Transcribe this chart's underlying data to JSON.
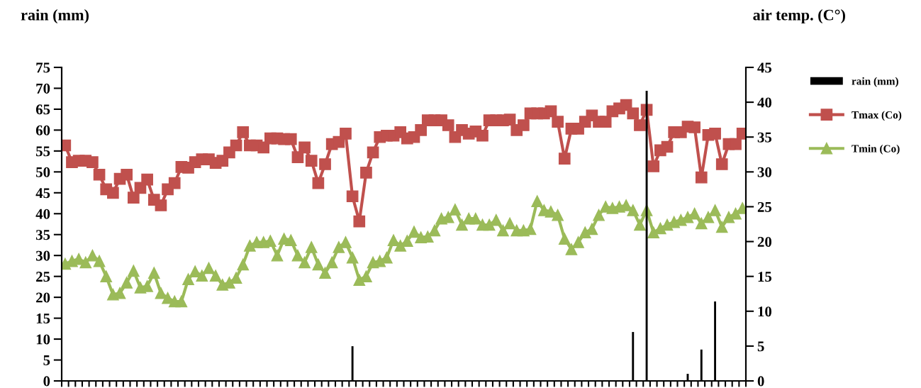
{
  "chart_data": {
    "type": "line",
    "categories": [
      null,
      null,
      null,
      null,
      null,
      null,
      null,
      null,
      null,
      null,
      null,
      null,
      null,
      null,
      null,
      null,
      null,
      null,
      null,
      null,
      null,
      null,
      null,
      null,
      null,
      null,
      null,
      null,
      null,
      null,
      null,
      null,
      null,
      null,
      null,
      null,
      null,
      null,
      null,
      null,
      null,
      null,
      null,
      null,
      null,
      null,
      null,
      null,
      null,
      null,
      null,
      null,
      null,
      null,
      null,
      null,
      null,
      null,
      null,
      null,
      null,
      null,
      null,
      null,
      null,
      null,
      null,
      null,
      null,
      null,
      null,
      null,
      null,
      null,
      null,
      null,
      null,
      null,
      null,
      null,
      null,
      null,
      null,
      null,
      null,
      null,
      null,
      null,
      null,
      null,
      null,
      null,
      null,
      null,
      null,
      null,
      null,
      null,
      null,
      null
    ],
    "ylabel": "rain (mm)",
    "y2label": "air temp. (C°)",
    "ylim": [
      0,
      75
    ],
    "yticks": [
      0,
      5,
      10,
      15,
      20,
      25,
      30,
      35,
      40,
      45,
      50,
      55,
      60,
      65,
      70,
      75
    ],
    "y2lim": [
      0,
      45
    ],
    "y2ticks": [
      0,
      5,
      10,
      15,
      20,
      25,
      30,
      35,
      40,
      45
    ],
    "legend": "right",
    "grid": false,
    "series": [
      {
        "name": "rain (mm)",
        "type": "bar",
        "color": "#000000",
        "values": [
          0,
          0,
          0,
          0,
          0,
          0,
          0,
          0,
          0,
          0,
          0,
          0,
          0,
          0,
          0,
          0,
          0,
          0,
          0,
          0,
          0,
          0,
          0,
          0,
          0,
          0,
          0,
          0,
          0,
          0,
          0,
          0,
          0,
          0,
          0,
          0,
          0,
          0,
          0,
          0,
          0,
          0,
          8.3,
          0,
          0,
          0,
          0,
          0,
          0,
          0,
          0,
          0,
          0,
          0,
          0,
          0,
          0,
          0,
          0,
          0,
          0,
          0,
          0,
          0,
          0,
          0,
          0,
          0,
          0,
          0,
          0,
          0,
          0,
          0,
          0,
          0,
          0,
          0,
          0,
          0,
          0,
          0,
          0,
          11.7,
          0,
          69.4,
          0,
          0,
          0,
          0,
          0,
          1.7,
          0,
          7.5,
          0,
          19.0,
          0,
          0,
          0,
          0
        ]
      },
      {
        "name": "Tmax (Co)",
        "axis": "y2",
        "marker": "square",
        "color": "#c0504d",
        "values": [
          33.8,
          31.4,
          31.6,
          31.6,
          31.4,
          29.6,
          27.5,
          27.0,
          29.0,
          29.6,
          26.3,
          27.7,
          28.9,
          26.0,
          25.2,
          27.5,
          28.4,
          30.7,
          30.6,
          31.4,
          31.8,
          31.8,
          31.3,
          31.6,
          32.8,
          33.8,
          35.7,
          33.8,
          33.8,
          33.5,
          34.8,
          34.8,
          34.7,
          34.7,
          32.1,
          33.5,
          31.6,
          28.4,
          31.1,
          34.0,
          34.3,
          35.5,
          26.5,
          22.9,
          29.9,
          32.8,
          35.0,
          35.2,
          35.2,
          35.7,
          34.8,
          35.0,
          36.0,
          37.4,
          37.4,
          37.4,
          36.7,
          35.0,
          36.0,
          35.5,
          35.8,
          35.2,
          37.4,
          37.4,
          37.4,
          37.5,
          36.0,
          36.7,
          38.4,
          38.4,
          38.4,
          38.7,
          37.2,
          31.9,
          36.2,
          36.2,
          37.2,
          38.1,
          37.2,
          37.2,
          38.7,
          39.1,
          39.6,
          38.4,
          36.7,
          38.9,
          30.8,
          33.1,
          33.6,
          35.7,
          35.7,
          36.5,
          36.4,
          29.2,
          35.3,
          35.5,
          31.1,
          34.0,
          34.0,
          35.5
        ]
      },
      {
        "name": "Tmin (Co)",
        "axis": "y2",
        "marker": "triangle",
        "color": "#9bbb59",
        "values": [
          16.8,
          17.2,
          17.5,
          17.0,
          18.0,
          17.2,
          15.0,
          12.4,
          12.6,
          14.1,
          15.8,
          13.4,
          13.6,
          15.5,
          12.6,
          11.9,
          11.4,
          11.4,
          14.6,
          15.7,
          15.1,
          16.2,
          15.1,
          13.8,
          14.1,
          14.8,
          16.7,
          19.4,
          19.9,
          19.9,
          20.1,
          18.0,
          20.4,
          20.2,
          18.0,
          17.0,
          19.2,
          16.7,
          15.5,
          17.0,
          19.2,
          19.9,
          17.7,
          14.5,
          15.0,
          17.0,
          17.2,
          17.7,
          20.2,
          19.4,
          20.1,
          21.4,
          20.6,
          20.7,
          21.6,
          23.3,
          23.5,
          24.6,
          22.4,
          23.3,
          23.3,
          22.4,
          22.4,
          23.1,
          21.6,
          22.6,
          21.6,
          21.6,
          21.8,
          25.8,
          24.5,
          24.3,
          23.8,
          20.4,
          18.9,
          19.9,
          21.3,
          21.8,
          23.8,
          25.0,
          24.8,
          25.0,
          25.2,
          24.5,
          22.4,
          24.5,
          21.3,
          21.9,
          22.4,
          22.8,
          23.1,
          23.5,
          24.0,
          22.6,
          23.5,
          24.5,
          22.1,
          23.5,
          24.0,
          24.8
        ]
      }
    ]
  }
}
